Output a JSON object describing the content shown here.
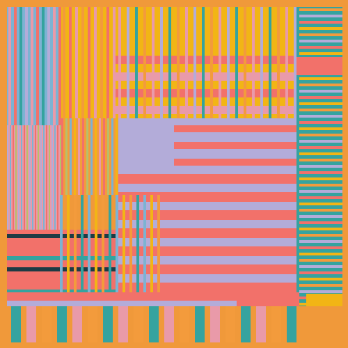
{
  "palette": {
    "background": "#f0993a",
    "orange": "#f39b3c",
    "yellow": "#f2b515",
    "salmon": "#f2716a",
    "teal": "#35a39f",
    "sky": "#7cb3d3",
    "lavender": "#b3acd9",
    "pink": "#e99aa9",
    "lime": "#b7c06a",
    "ink": "#1e3b44"
  },
  "artwork": {
    "kind": "abstract-generative-stripes"
  }
}
